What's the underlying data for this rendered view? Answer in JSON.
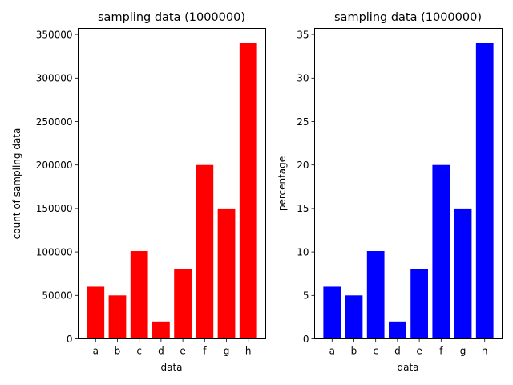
{
  "chart_data": [
    {
      "type": "bar",
      "title": "sampling data (1000000)",
      "xlabel": "data",
      "ylabel": "count of sampling data",
      "categories": [
        "a",
        "b",
        "c",
        "d",
        "e",
        "f",
        "g",
        "h"
      ],
      "values": [
        60000,
        50000,
        101000,
        20000,
        80000,
        200000,
        150000,
        340000
      ],
      "ylim": [
        0,
        357000
      ],
      "yticks": [
        0,
        50000,
        100000,
        150000,
        200000,
        250000,
        300000,
        350000
      ],
      "ytick_labels": [
        "0",
        "50000",
        "100000",
        "150000",
        "200000",
        "250000",
        "300000",
        "350000"
      ],
      "color": "#ff0000",
      "grid": false
    },
    {
      "type": "bar",
      "title": "sampling data (1000000)",
      "xlabel": "data",
      "ylabel": "percentage",
      "categories": [
        "a",
        "b",
        "c",
        "d",
        "e",
        "f",
        "g",
        "h"
      ],
      "values": [
        6,
        5,
        10.1,
        2,
        8,
        20,
        15,
        34
      ],
      "ylim": [
        0,
        35.7
      ],
      "yticks": [
        0,
        5,
        10,
        15,
        20,
        25,
        30,
        35
      ],
      "ytick_labels": [
        "0",
        "5",
        "10",
        "15",
        "20",
        "25",
        "30",
        "35"
      ],
      "color": "#0000ff",
      "grid": false
    }
  ]
}
